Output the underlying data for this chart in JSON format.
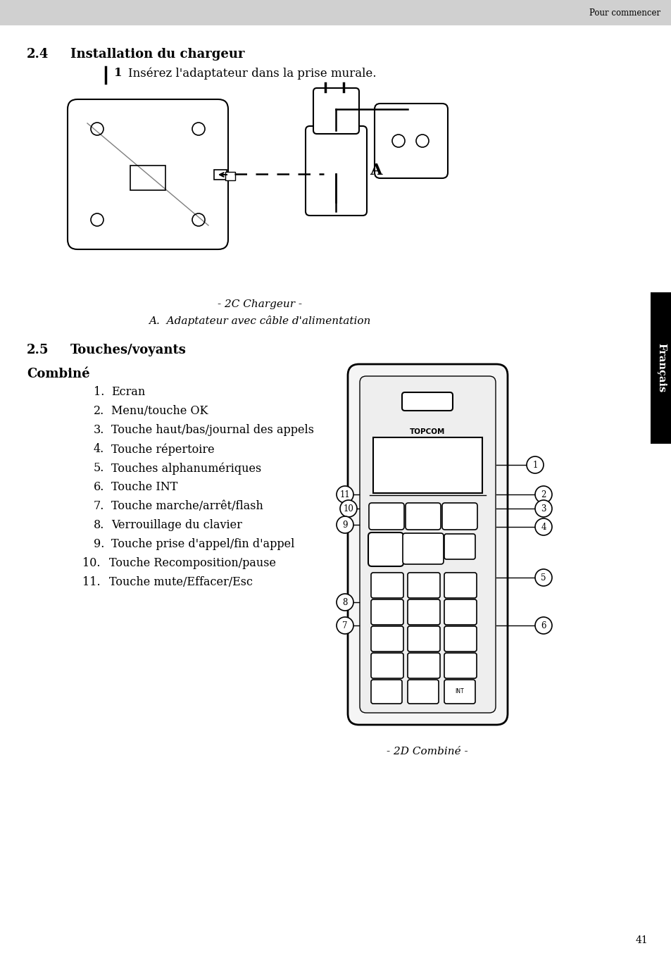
{
  "page_header_text": "Pour commencer",
  "header_bg": "#d0d0d0",
  "section_2_4_num": "2.4",
  "section_2_4_title": "Installation du chargeur",
  "step1_num": "1",
  "step1_text": "Insérez l'adaptateur dans la prise murale.",
  "caption_line1": "- 2C Chargeur -",
  "caption_line2": "A.  Adaptateur avec câble d'alimentation",
  "label_A": "A",
  "section_2_5_num": "2.5",
  "section_2_5_title": "Touches/voyants",
  "combine_title": "Combiné",
  "items": [
    "Ecran",
    "Menu/touche OK",
    "Touche haut/bas/journal des appels",
    "Touche répertoire",
    "Touches alphanumériques",
    "Touche INT",
    "Touche marche/arrêt/flash",
    "Verrouillage du clavier",
    "Touche prise d'appel/fin d'appel",
    "Touche Recomposition/pause",
    "Touche mute/Effacer/Esc"
  ],
  "page_number": "41",
  "sidebar_text": "Français",
  "sidebar_bg": "#000000"
}
